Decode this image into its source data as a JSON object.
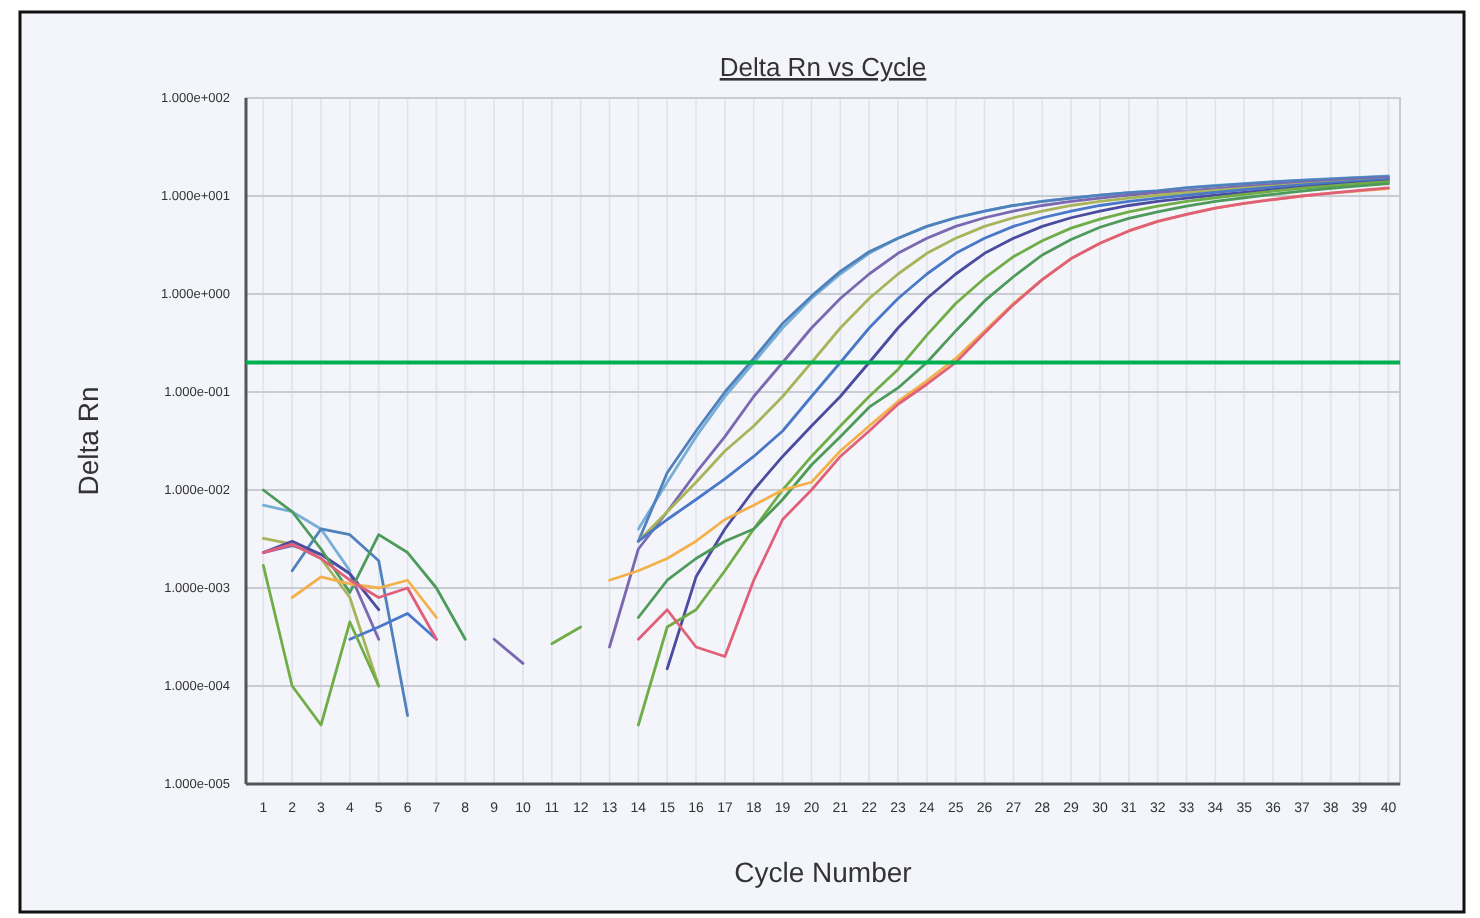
{
  "chart_data": {
    "type": "line",
    "title": "Delta Rn vs Cycle",
    "xlabel": "Cycle Number",
    "ylabel": "Delta Rn",
    "log": "y",
    "grid": true,
    "marker": "none",
    "line_style": "solid",
    "xlim": [
      0.4,
      40.4
    ],
    "xticks": [
      1,
      2,
      3,
      4,
      5,
      6,
      7,
      8,
      9,
      10,
      11,
      12,
      13,
      14,
      15,
      16,
      17,
      18,
      19,
      20,
      21,
      22,
      23,
      24,
      25,
      26,
      27,
      28,
      29,
      30,
      31,
      32,
      33,
      34,
      35,
      36,
      37,
      38,
      39,
      40
    ],
    "ylim": [
      1e-05,
      100
    ],
    "yticks": [
      {
        "value": 1e-05,
        "label": "1.000e-005"
      },
      {
        "value": 0.0001,
        "label": "1.000e-004"
      },
      {
        "value": 0.001,
        "label": "1.000e-003"
      },
      {
        "value": 0.01,
        "label": "1.000e-002"
      },
      {
        "value": 0.1,
        "label": "1.000e-001"
      },
      {
        "value": 1,
        "label": "1.000e+000"
      },
      {
        "value": 10,
        "label": "1.000e+001"
      },
      {
        "value": 100,
        "label": "1.000e+002"
      }
    ],
    "x": [
      1,
      2,
      3,
      4,
      5,
      6,
      7,
      8,
      9,
      10,
      11,
      12,
      13,
      14,
      15,
      16,
      17,
      18,
      19,
      20,
      21,
      22,
      23,
      24,
      25,
      26,
      27,
      28,
      29,
      30,
      31,
      32,
      33,
      34,
      35,
      36,
      37,
      38,
      39,
      40
    ],
    "ref_lines": [
      {
        "axis": "y",
        "value": 0.2,
        "color": "#00b050"
      }
    ],
    "series": [
      {
        "color": "#79aed6",
        "values": [
          0.007,
          0.006,
          0.004,
          0.0015,
          null,
          null,
          null,
          null,
          null,
          null,
          null,
          null,
          null,
          0.004,
          0.012,
          0.035,
          0.09,
          0.2,
          0.45,
          0.9,
          1.6,
          2.6,
          3.7,
          4.9,
          6.0,
          7.0,
          8.0,
          8.8,
          9.5,
          10.2,
          10.8,
          11.3,
          12.2,
          12.8,
          13.4,
          14.0,
          14.5,
          15.0,
          15.5,
          16.0
        ]
      },
      {
        "color": "#4f81bd",
        "values": [
          null,
          0.0015,
          0.004,
          0.0035,
          0.0019,
          5e-05,
          null,
          null,
          null,
          null,
          null,
          null,
          null,
          0.003,
          0.015,
          0.04,
          0.1,
          0.22,
          0.5,
          0.95,
          1.7,
          2.7,
          3.7,
          4.9,
          6.0,
          7.0,
          8.0,
          8.8,
          9.5,
          10.2,
          10.8,
          11.3,
          12.1,
          12.7,
          13.3,
          13.9,
          14.4,
          14.9,
          15.4,
          15.8
        ]
      },
      {
        "color": "#7b68b0",
        "values": [
          0.0023,
          0.0027,
          0.0022,
          0.0014,
          0.0003,
          null,
          null,
          null,
          0.0003,
          0.00017,
          null,
          null,
          0.00025,
          0.0025,
          0.006,
          0.015,
          0.035,
          0.09,
          0.2,
          0.45,
          0.9,
          1.6,
          2.6,
          3.7,
          4.9,
          6.0,
          7.0,
          8.0,
          8.8,
          9.5,
          10.2,
          10.8,
          11.3,
          11.9,
          12.5,
          13.1,
          13.7,
          14.3,
          14.8,
          15.3
        ]
      },
      {
        "color": "#a8b45a",
        "values": [
          0.0032,
          0.0028,
          0.002,
          0.0008,
          0.0001,
          null,
          null,
          null,
          null,
          null,
          null,
          null,
          null,
          0.003,
          0.006,
          0.012,
          0.025,
          0.045,
          0.09,
          0.2,
          0.45,
          0.9,
          1.6,
          2.6,
          3.7,
          4.9,
          6.0,
          7.0,
          8.0,
          8.8,
          9.5,
          10.2,
          10.8,
          11.4,
          12.0,
          12.6,
          13.2,
          13.8,
          14.3,
          14.8
        ]
      },
      {
        "color": "#4a78c8",
        "values": [
          null,
          null,
          null,
          0.0003,
          0.0004,
          0.00055,
          0.0003,
          null,
          null,
          null,
          null,
          null,
          null,
          0.003,
          0.005,
          0.008,
          0.013,
          0.022,
          0.04,
          0.09,
          0.2,
          0.45,
          0.9,
          1.6,
          2.6,
          3.7,
          4.9,
          6.0,
          7.0,
          8.0,
          8.8,
          9.5,
          10.2,
          10.9,
          11.6,
          12.3,
          13.0,
          13.6,
          14.2,
          14.8
        ]
      },
      {
        "color": "#4b4ba0",
        "values": [
          0.0023,
          0.003,
          0.0022,
          0.0014,
          0.0006,
          null,
          null,
          null,
          null,
          null,
          null,
          null,
          null,
          null,
          0.00015,
          0.0013,
          0.004,
          0.01,
          0.022,
          0.045,
          0.09,
          0.2,
          0.45,
          0.9,
          1.6,
          2.6,
          3.7,
          4.9,
          6.0,
          7.0,
          8.0,
          8.8,
          9.5,
          10.2,
          10.9,
          11.6,
          12.3,
          13.0,
          13.6,
          14.2
        ]
      },
      {
        "color": "#70ad47",
        "values": [
          0.0017,
          0.0001,
          4e-05,
          0.00045,
          0.0001,
          null,
          null,
          null,
          null,
          null,
          0.00027,
          0.0004,
          null,
          4e-05,
          0.0004,
          0.0006,
          0.0015,
          0.004,
          0.01,
          0.022,
          0.045,
          0.09,
          0.17,
          0.38,
          0.8,
          1.45,
          2.4,
          3.5,
          4.7,
          5.8,
          6.9,
          7.9,
          8.8,
          9.6,
          10.4,
          11.2,
          12.0,
          12.7,
          13.4,
          14.0
        ]
      },
      {
        "color": "#4e9a5a",
        "values": [
          0.01,
          0.006,
          0.0025,
          0.0009,
          0.0035,
          0.0023,
          0.001,
          0.0003,
          null,
          null,
          null,
          null,
          null,
          0.0005,
          0.0012,
          0.002,
          0.003,
          0.004,
          0.008,
          0.018,
          0.035,
          0.07,
          0.11,
          0.2,
          0.42,
          0.85,
          1.5,
          2.5,
          3.6,
          4.8,
          5.9,
          6.9,
          7.9,
          8.8,
          9.6,
          10.4,
          11.2,
          12.0,
          12.7,
          13.4
        ]
      },
      {
        "color": "#f4b04a",
        "values": [
          null,
          0.0008,
          0.0013,
          0.0011,
          0.001,
          0.0012,
          0.0005,
          null,
          null,
          null,
          null,
          null,
          0.0012,
          0.0015,
          0.002,
          0.003,
          0.005,
          0.007,
          0.01,
          0.012,
          0.025,
          0.045,
          0.08,
          0.13,
          0.22,
          0.42,
          0.8,
          1.4,
          2.3,
          3.3,
          4.4,
          5.5,
          6.5,
          7.5,
          8.4,
          9.2,
          10.0,
          10.7,
          11.3,
          11.9
        ]
      },
      {
        "color": "#e0607a",
        "values": [
          0.0023,
          0.0028,
          0.002,
          0.0012,
          0.0008,
          0.001,
          0.0003,
          null,
          null,
          null,
          null,
          null,
          null,
          0.0003,
          0.0006,
          0.00025,
          0.0002,
          0.0012,
          0.005,
          0.01,
          0.022,
          0.04,
          0.075,
          0.12,
          0.2,
          0.4,
          0.78,
          1.4,
          2.3,
          3.3,
          4.4,
          5.5,
          6.5,
          7.5,
          8.4,
          9.2,
          10.0,
          10.7,
          11.4,
          12.1
        ]
      }
    ]
  }
}
